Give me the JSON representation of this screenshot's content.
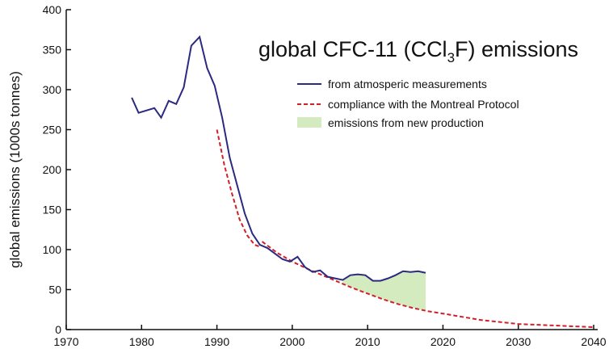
{
  "chart_data": {
    "type": "line",
    "title": "global CFC-11 (CCl",
    "title_sub": "3",
    "title_end": "F) emissions",
    "xlabel": "",
    "ylabel": "global emissions (1000s tonnes)",
    "xlim": [
      1970,
      2040
    ],
    "ylim": [
      0,
      400
    ],
    "xticks": [
      1970,
      1980,
      1990,
      2000,
      2010,
      2020,
      2030,
      2040
    ],
    "yticks": [
      0,
      50,
      100,
      150,
      200,
      250,
      300,
      350,
      400
    ],
    "grid": false,
    "legend_position": "top-right",
    "colors": {
      "measured": "#2a2a80",
      "compliance": "#d0202a",
      "fill": "#d4ebbf"
    },
    "series": [
      {
        "name": "from atmosperic measurements",
        "x": [
          1978.7,
          1979.6,
          1981.7,
          1982.6,
          1983.6,
          1984.6,
          1985.6,
          1986.6,
          1987.7,
          1988.7,
          1989.7,
          1990.7,
          1991.7,
          1992.7,
          1993.7,
          1994.7,
          1995.7,
          1996.7,
          1997.7,
          1998.7,
          1999.7,
          2000.7,
          2001.7,
          2002.7,
          2003.7,
          2004.7,
          2005.7,
          2006.7,
          2007.7,
          2008.7,
          2009.7,
          2010.7,
          2011.7,
          2012.7,
          2013.7,
          2014.7,
          2015.7,
          2016.7,
          2017.7
        ],
        "y": [
          290,
          271,
          277,
          265,
          286,
          282,
          303,
          355,
          366,
          327,
          305,
          265,
          215,
          180,
          145,
          120,
          106,
          102,
          95,
          88,
          85,
          91,
          78,
          72,
          74,
          66,
          64,
          62,
          68,
          69,
          68,
          61,
          61,
          64,
          68,
          73,
          72,
          73,
          71
        ]
      },
      {
        "name": "compliance with the Montreal Protocol",
        "x": [
          1990,
          1991,
          1992,
          1993,
          1994,
          1995,
          1995.6,
          1996,
          1998,
          2000,
          2002,
          2004,
          2006,
          2008,
          2010,
          2012,
          2014,
          2016,
          2018,
          2020,
          2025,
          2030,
          2035,
          2040
        ],
        "y": [
          250,
          205,
          170,
          138,
          118,
          106,
          104,
          110,
          96,
          85,
          76,
          68,
          60,
          52,
          45,
          38,
          32,
          27,
          23,
          20,
          12,
          7,
          5,
          3
        ]
      }
    ],
    "fill_label": "emissions from new production",
    "fill_range": [
      2006.7,
      2017.7
    ]
  }
}
